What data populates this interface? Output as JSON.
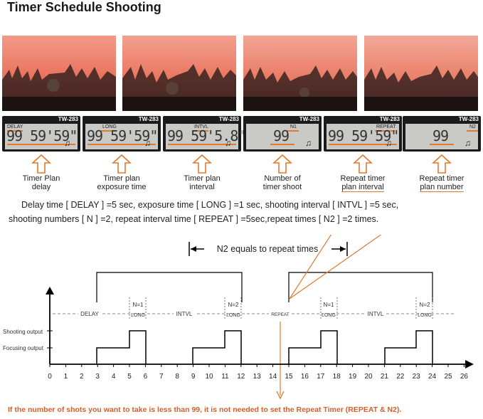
{
  "title": "Timer Schedule Shooting",
  "lcd_model": "TW-283",
  "panels": [
    {
      "mode": "DELAY",
      "digits": "99 59'59\"",
      "caption": [
        "Timer Plan",
        "delay"
      ]
    },
    {
      "mode": "LONG",
      "digits": "99 59'59\"",
      "caption": [
        "Timer plan",
        "exposure time"
      ]
    },
    {
      "mode": "INTVL",
      "digits": "99 59'5.8\"",
      "caption": [
        "Timer plan",
        "interval"
      ]
    },
    {
      "mode": "N1",
      "digits": "99",
      "caption": [
        "Number of",
        "timer shoot"
      ]
    },
    {
      "mode": "REPEAT",
      "digits": "99 59'59\"",
      "caption": [
        "Repeat timer",
        "plan interval"
      ]
    },
    {
      "mode": "N2",
      "digits": "99",
      "caption": [
        "Repeat timer",
        "plan number"
      ]
    }
  ],
  "description": {
    "line1": "Delay time [ DELAY ] =5 sec, exposure time [ LONG ] =1 sec, shooting interval [ INTVL ] =5 sec,",
    "line2": "shooting numbers [ N ] =2, repeat interval time [ REPEAT ] =5sec,repeat times [ N2 ] =2 times."
  },
  "diagram": {
    "n2_label": "N2 equals to repeat times",
    "labels": {
      "delay": "DELAY",
      "intvl1": "INTVL",
      "intvl2": "INTVL",
      "repeat": "REPEAT",
      "n1a": "N=1",
      "long1": "LONG",
      "n2a": "N=2",
      "long2": "LONG",
      "n1b": "N=1",
      "long3": "LONG",
      "n2b": "N=2",
      "long4": "LONG",
      "shooting_output": "Shooting output",
      "focusing_output": "Focusing output"
    },
    "axis_ticks": [
      "0",
      "1",
      "2",
      "3",
      "4",
      "5",
      "6",
      "7",
      "8",
      "9",
      "10",
      "11",
      "12",
      "13",
      "14",
      "15",
      "16",
      "17",
      "18",
      "19",
      "20",
      "21",
      "22",
      "23",
      "24",
      "25",
      "26"
    ]
  },
  "footer": "If the number of shots you want to take is less than 99, it is not needed to set the Repeat Timer (REPEAT & N2).",
  "colors": {
    "accent": "#e07a2e",
    "footer": "#d2602a"
  }
}
